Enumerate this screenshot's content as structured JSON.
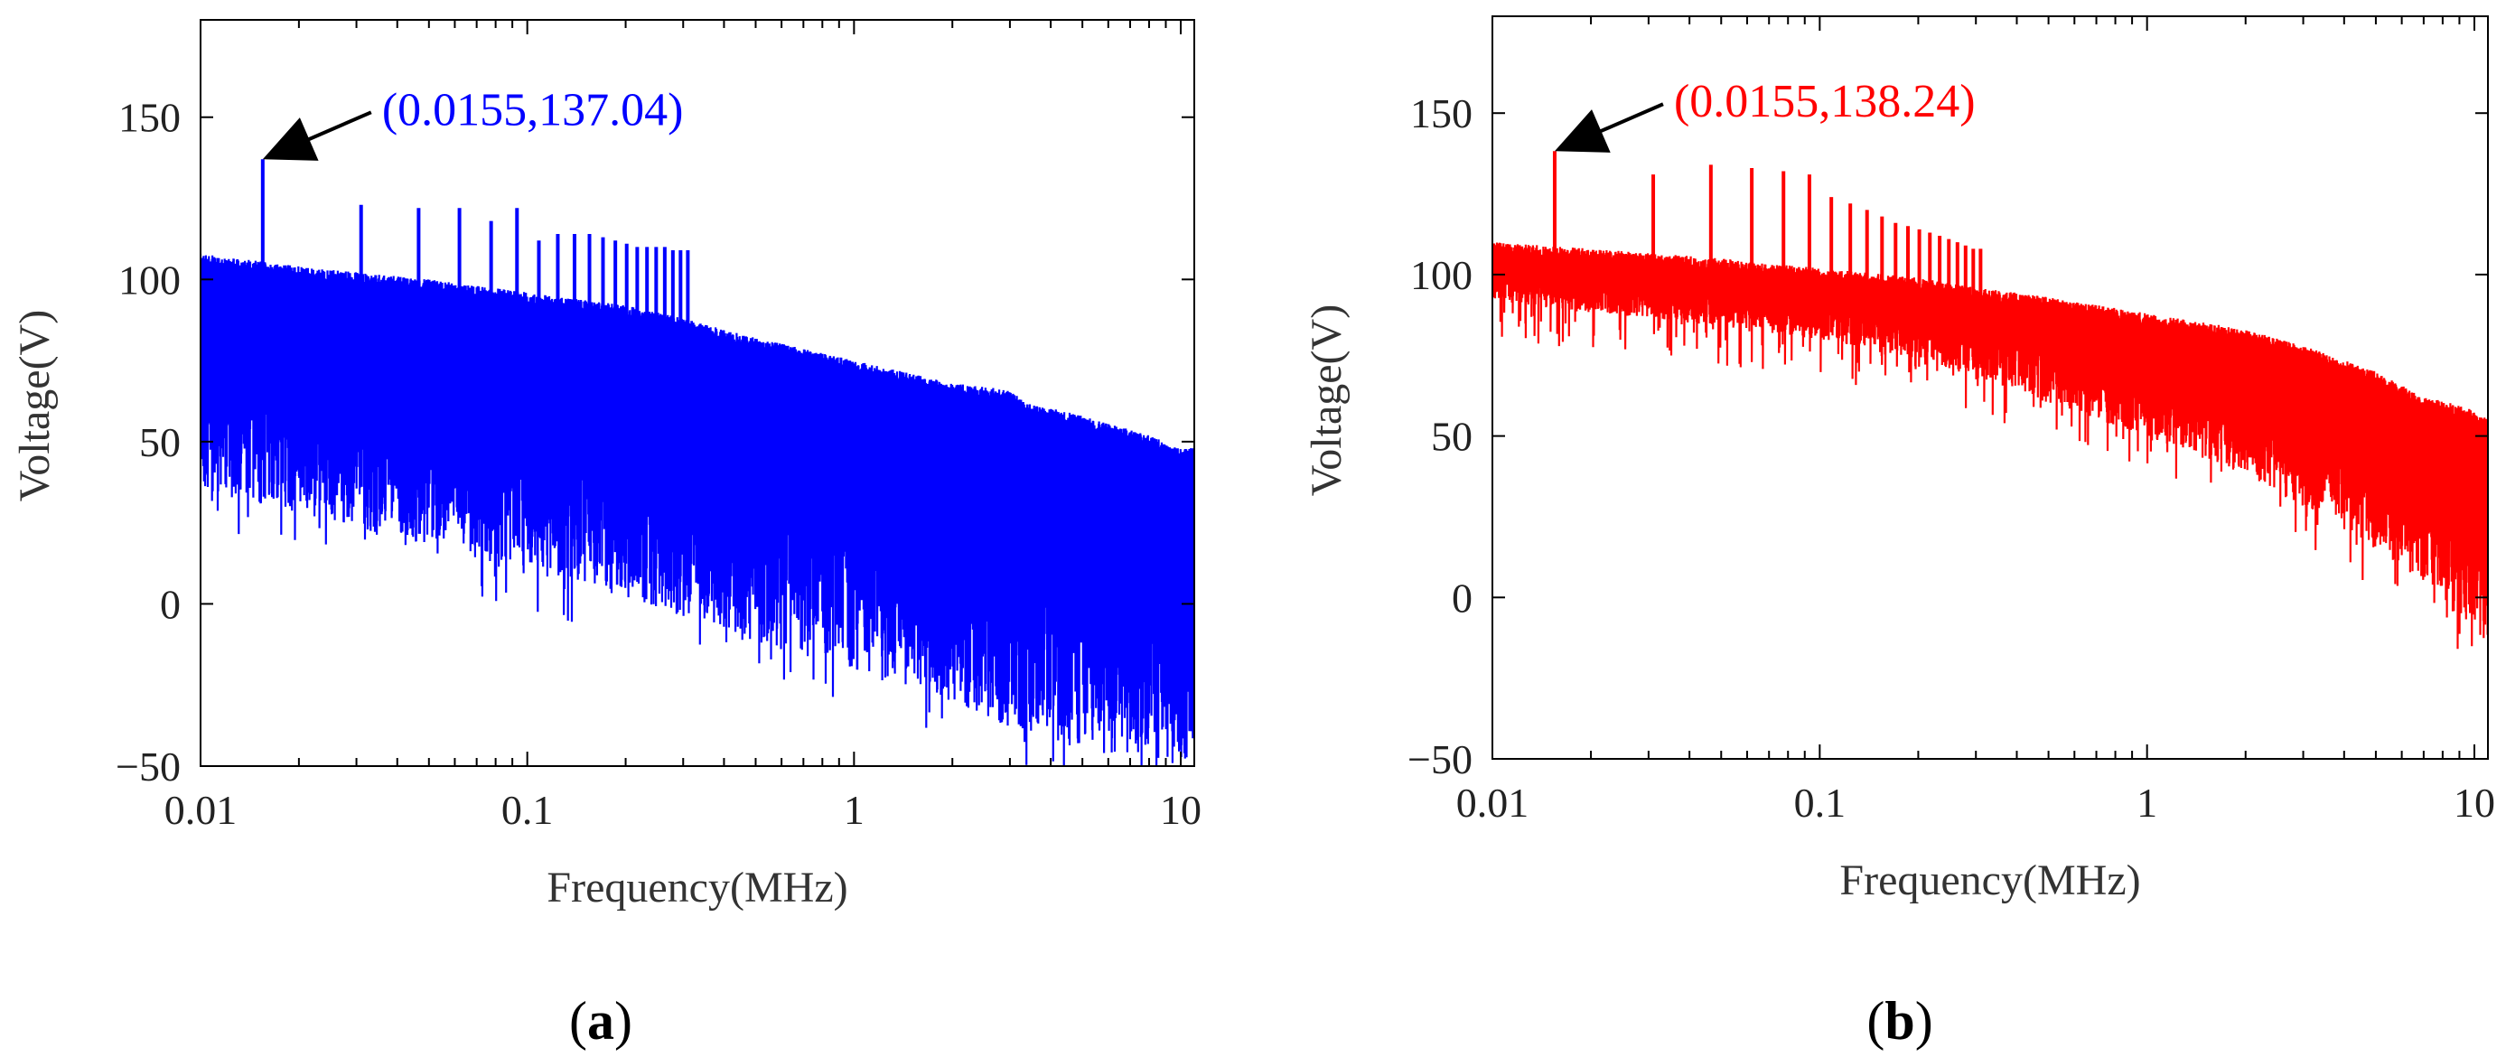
{
  "chart_data": [
    {
      "panel": "a",
      "panel_label": "a",
      "type": "line",
      "title": "",
      "xlabel": "Frequency(MHz)",
      "ylabel": "Voltage(V)",
      "xscale": "log",
      "xlim": [
        0.01,
        11
      ],
      "ylim": [
        -50,
        180
      ],
      "xticks": [
        0.01,
        0.1,
        1,
        10
      ],
      "xtick_labels": [
        "0.01",
        "0.1",
        "1",
        "10"
      ],
      "yticks": [
        -50,
        0,
        50,
        100,
        150
      ],
      "ytick_labels": [
        "−50",
        "0",
        "50",
        "100",
        "150"
      ],
      "grid": false,
      "series": [
        {
          "name": "spectrum",
          "color": "#0000ff",
          "envelope_upper": {
            "x": [
              0.01,
              0.02,
              0.05,
              0.1,
              0.2,
              0.3,
              0.5,
              1,
              2,
              3,
              3.4,
              5,
              8,
              10,
              11
            ],
            "y": [
              108,
              104,
              100,
              96,
              92,
              88,
              82,
              75,
              68,
              66,
              62,
              58,
              52,
              48,
              48
            ]
          },
          "envelope_lower": {
            "x": [
              0.01,
              0.02,
              0.05,
              0.1,
              0.2,
              0.3,
              0.5,
              1,
              2,
              3,
              5,
              10,
              11
            ],
            "y": [
              35,
              28,
              18,
              10,
              2,
              -4,
              -12,
              -20,
              -30,
              -38,
              -45,
              -50,
              -50
            ]
          },
          "harmonic_peaks": {
            "x": [
              0.0155,
              0.031,
              0.0465,
              0.062,
              0.0775,
              0.093,
              0.1085,
              0.124,
              0.1395,
              0.155,
              0.1705,
              0.186,
              0.2015,
              0.217,
              0.2325,
              0.248,
              0.2635,
              0.279,
              0.2945,
              0.31
            ],
            "y": [
              137.04,
              123,
              122,
              122,
              118,
              122,
              112,
              114,
              114,
              114,
              113,
              112,
              111,
              110,
              110,
              110,
              110,
              109,
              109,
              109
            ]
          }
        }
      ],
      "annotation": {
        "text": "(0.0155,137.04)",
        "x": 0.0155,
        "y": 137.04,
        "color": "#0000ff"
      }
    },
    {
      "panel": "b",
      "panel_label": "b",
      "type": "line",
      "title": "",
      "xlabel": "Frequency(MHz)",
      "ylabel": "Voltage(V)",
      "xscale": "log",
      "xlim": [
        0.01,
        11
      ],
      "ylim": [
        -50,
        180
      ],
      "xticks": [
        0.01,
        0.1,
        1,
        10
      ],
      "xtick_labels": [
        "0.01",
        "0.1",
        "1",
        "10"
      ],
      "yticks": [
        -50,
        0,
        50,
        100,
        150
      ],
      "ytick_labels": [
        "−50",
        "0",
        "50",
        "100",
        "150"
      ],
      "grid": false,
      "series": [
        {
          "name": "spectrum",
          "color": "#ff0000",
          "envelope_upper": {
            "x": [
              0.01,
              0.02,
              0.05,
              0.1,
              0.2,
              0.3,
              0.5,
              1,
              2,
              3,
              5,
              7,
              8,
              10,
              11
            ],
            "y": [
              110,
              108,
              105,
              102,
              99,
              96,
              93,
              88,
              83,
              78,
              70,
              62,
              61,
              58,
              55
            ]
          },
          "envelope_lower": {
            "x": [
              0.01,
              0.02,
              0.05,
              0.1,
              0.2,
              0.3,
              0.5,
              1,
              2,
              3,
              5,
              8,
              10,
              11
            ],
            "y": [
              92,
              88,
              84,
              80,
              74,
              68,
              60,
              50,
              38,
              28,
              15,
              0,
              -10,
              -15
            ]
          },
          "harmonic_peaks": {
            "x": [
              0.0155,
              0.031,
              0.0465,
              0.062,
              0.0775,
              0.093,
              0.1085,
              0.124,
              0.1395,
              0.155,
              0.1705,
              0.186,
              0.2015,
              0.217,
              0.2325,
              0.248,
              0.2635,
              0.279,
              0.2945,
              0.31
            ],
            "y": [
              138.24,
              131,
              134,
              133,
              132,
              131,
              124,
              122,
              120,
              118,
              116,
              115,
              114,
              113,
              112,
              111,
              110,
              109,
              108,
              108
            ]
          }
        }
      ],
      "annotation": {
        "text": "(0.0155,138.24)",
        "x": 0.0155,
        "y": 138.24,
        "color": "#ff0000"
      }
    }
  ]
}
